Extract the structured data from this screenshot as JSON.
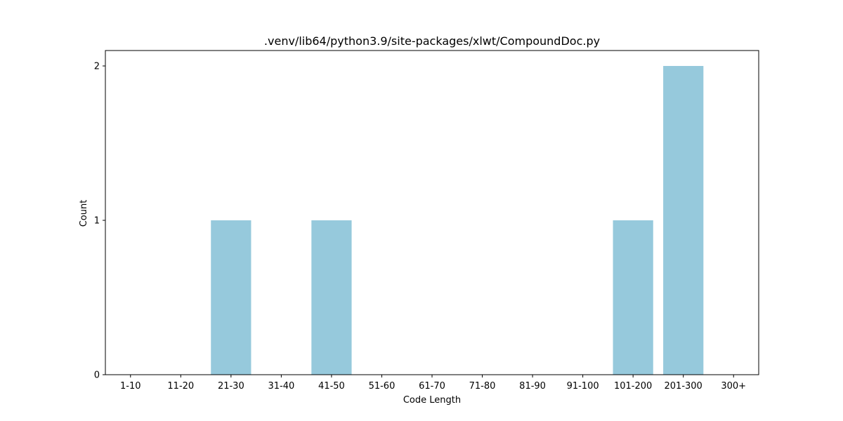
{
  "chart_data": {
    "type": "bar",
    "title": ".venv/lib64/python3.9/site-packages/xlwt/CompoundDoc.py",
    "xlabel": "Code Length",
    "ylabel": "Count",
    "categories": [
      "1-10",
      "11-20",
      "21-30",
      "31-40",
      "41-50",
      "51-60",
      "61-70",
      "71-80",
      "81-90",
      "91-100",
      "101-200",
      "201-300",
      "300+"
    ],
    "values": [
      0,
      0,
      1,
      0,
      1,
      0,
      0,
      0,
      0,
      0,
      1,
      2,
      0
    ],
    "ylim": [
      0,
      2.1
    ],
    "yticks": [
      0,
      1,
      2
    ],
    "bar_color": "#96c9dc",
    "grid": false,
    "legend": "none"
  }
}
